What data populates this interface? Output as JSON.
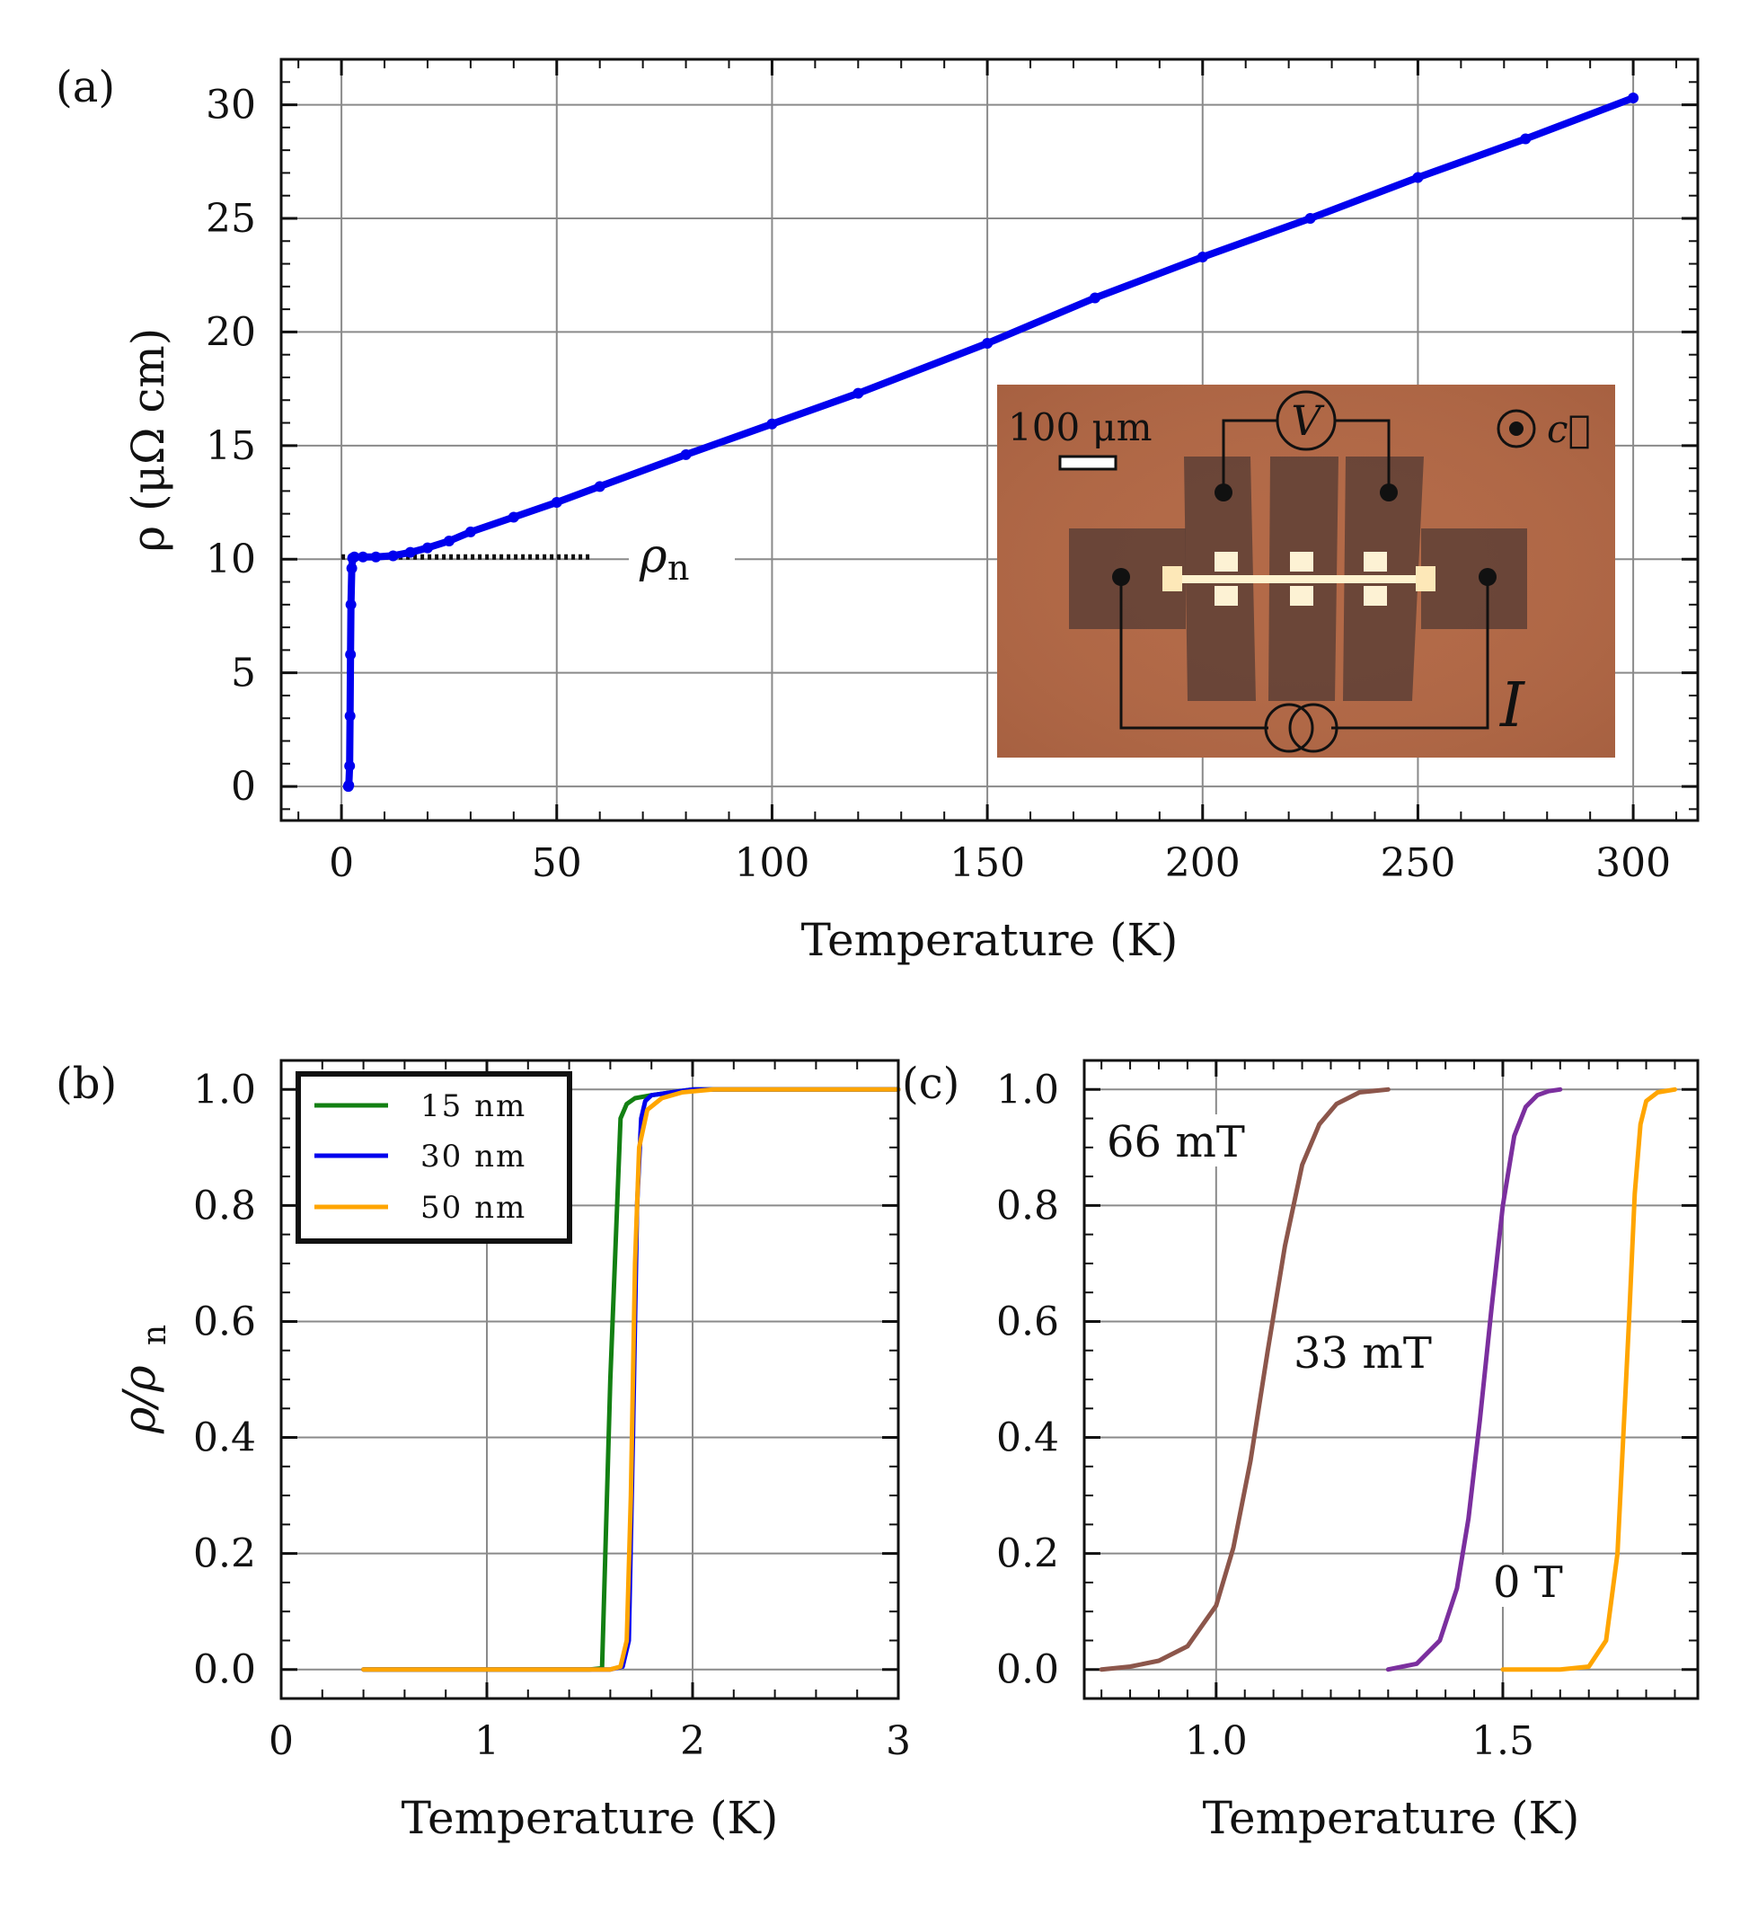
{
  "chart_data": [
    {
      "panel": "(a)",
      "type": "line",
      "xlabel": "Temperature (K)",
      "ylabel": "ρ (μΩ cm)",
      "xlim": [
        -14,
        315
      ],
      "ylim": [
        -1.5,
        32
      ],
      "xticks": [
        0,
        50,
        100,
        150,
        200,
        250,
        300
      ],
      "xtick_labels": [
        "0",
        "50",
        "100",
        "150",
        "200",
        "250",
        "300"
      ],
      "yticks": [
        0,
        5,
        10,
        15,
        20,
        25,
        30
      ],
      "ytick_labels": [
        "0",
        "5",
        "10",
        "15",
        "20",
        "25",
        "30"
      ],
      "grid": true,
      "series": [
        {
          "name": "ρ(T)",
          "color": "#0000ee",
          "x": [
            1.6,
            1.7,
            1.9,
            2.0,
            2.1,
            2.2,
            2.4,
            2.6,
            3,
            5,
            8,
            12,
            16,
            20,
            25,
            30,
            40,
            50,
            60,
            80,
            100,
            120,
            150,
            175,
            200,
            225,
            250,
            275,
            300
          ],
          "y": [
            0,
            0.05,
            0.9,
            3.1,
            5.8,
            8.0,
            9.6,
            10.05,
            10.1,
            10.1,
            10.1,
            10.15,
            10.3,
            10.5,
            10.8,
            11.2,
            11.85,
            12.5,
            13.2,
            14.6,
            15.95,
            17.3,
            19.5,
            21.5,
            23.3,
            25.0,
            26.8,
            28.5,
            30.3
          ]
        }
      ],
      "reference_line": {
        "label": "ρ",
        "label_sub": "n",
        "y": 10.1,
        "x_range": [
          0,
          58
        ],
        "style": "dotted",
        "color": "#111111"
      },
      "inset": {
        "scale_bar": "100 μm",
        "voltage_symbol": "V",
        "current_symbol": "I",
        "axis_symbol": "c⃗",
        "background": "#b36a48"
      }
    },
    {
      "panel": "(b)",
      "type": "line",
      "xlabel": "Temperature (K)",
      "ylabel": "ρ/ρ",
      "ylabel_sub": "n",
      "xlim": [
        0,
        3
      ],
      "ylim": [
        -0.05,
        1.05
      ],
      "xticks": [
        0,
        1,
        2,
        3
      ],
      "xtick_labels": [
        "0",
        "1",
        "2",
        "3"
      ],
      "yticks": [
        0,
        0.2,
        0.4,
        0.6,
        0.8,
        1.0
      ],
      "ytick_labels": [
        "0.0",
        "0.2",
        "0.4",
        "0.6",
        "0.8",
        "1.0"
      ],
      "grid": true,
      "legend": "top-left",
      "series": [
        {
          "name": "15 nm",
          "color": "#138013",
          "x": [
            0.4,
            1.0,
            1.5,
            1.56,
            1.6,
            1.65,
            1.68,
            1.72,
            1.8,
            1.9,
            2.0,
            2.2,
            3.0
          ],
          "y": [
            0,
            0,
            0,
            0.002,
            0.5,
            0.95,
            0.975,
            0.985,
            0.99,
            0.995,
            1.0,
            1.0,
            1.0
          ]
        },
        {
          "name": "30 nm",
          "color": "#0000ee",
          "x": [
            0.4,
            1.0,
            1.6,
            1.66,
            1.69,
            1.71,
            1.73,
            1.75,
            1.77,
            1.8,
            1.9,
            2.0,
            3.0
          ],
          "y": [
            0,
            0,
            0,
            0.005,
            0.05,
            0.4,
            0.8,
            0.95,
            0.98,
            0.99,
            0.995,
            1.0,
            1.0
          ]
        },
        {
          "name": "50 nm",
          "color": "#ffa500",
          "x": [
            0.4,
            1.0,
            1.6,
            1.65,
            1.68,
            1.7,
            1.72,
            1.74,
            1.78,
            1.85,
            1.95,
            2.1,
            3.0
          ],
          "y": [
            0,
            0,
            0,
            0.005,
            0.05,
            0.3,
            0.7,
            0.9,
            0.965,
            0.985,
            0.995,
            1.0,
            1.0
          ]
        }
      ]
    },
    {
      "panel": "(c)",
      "type": "line",
      "xlabel": "Temperature (K)",
      "ylabel": "",
      "xlim": [
        0.77,
        1.84
      ],
      "ylim": [
        -0.05,
        1.05
      ],
      "xticks": [
        1.0,
        1.5
      ],
      "xtick_labels": [
        "1.0",
        "1.5"
      ],
      "yticks": [
        0,
        0.2,
        0.4,
        0.6,
        0.8,
        1.0
      ],
      "ytick_labels": [
        "0.0",
        "0.2",
        "0.4",
        "0.6",
        "0.8",
        "1.0"
      ],
      "grid": true,
      "series": [
        {
          "name": "66 mT",
          "color": "#8c564b",
          "x": [
            0.8,
            0.85,
            0.9,
            0.95,
            1.0,
            1.03,
            1.06,
            1.09,
            1.12,
            1.15,
            1.18,
            1.21,
            1.25,
            1.3
          ],
          "y": [
            0,
            0.005,
            0.015,
            0.04,
            0.11,
            0.21,
            0.36,
            0.55,
            0.73,
            0.87,
            0.94,
            0.975,
            0.995,
            1.0
          ]
        },
        {
          "name": "33 mT",
          "color": "#7b2f9e",
          "x": [
            1.3,
            1.35,
            1.39,
            1.42,
            1.44,
            1.46,
            1.48,
            1.5,
            1.52,
            1.54,
            1.56,
            1.58,
            1.6
          ],
          "y": [
            0,
            0.01,
            0.05,
            0.14,
            0.26,
            0.43,
            0.62,
            0.8,
            0.92,
            0.97,
            0.99,
            0.997,
            1.0
          ]
        },
        {
          "name": "0 T",
          "color": "#ffa500",
          "x": [
            1.5,
            1.6,
            1.65,
            1.68,
            1.7,
            1.71,
            1.72,
            1.73,
            1.74,
            1.75,
            1.77,
            1.8
          ],
          "y": [
            0,
            0,
            0.005,
            0.05,
            0.2,
            0.4,
            0.6,
            0.82,
            0.94,
            0.98,
            0.995,
            1.0
          ]
        }
      ]
    }
  ]
}
